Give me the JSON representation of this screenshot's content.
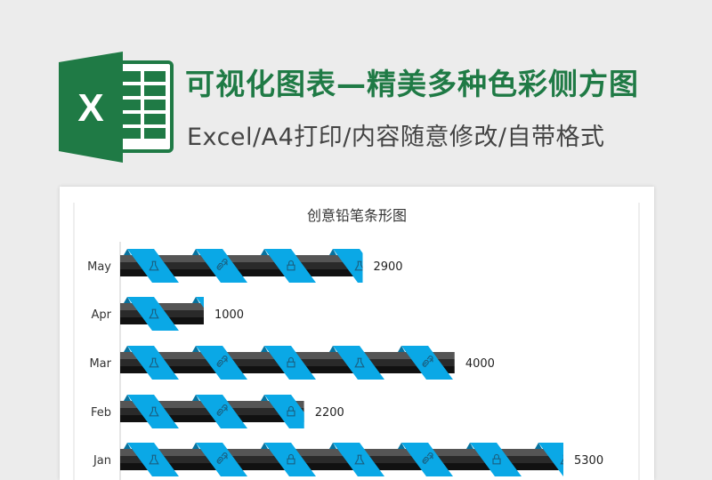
{
  "header": {
    "title": "可视化图表—精美多种色彩侧方图",
    "subtitle": "Excel/A4打印/内容随意修改/自带格式",
    "logo_letter": "X"
  },
  "colors": {
    "brand_green": "#1f7a45",
    "ribbon_blue": "#0aa8e6",
    "bar_dark": "#222222"
  },
  "chart_data": {
    "type": "bar",
    "orientation": "horizontal",
    "title": "创意铅笔条形图",
    "categories": [
      "May",
      "Apr",
      "Mar",
      "Feb",
      "Jan"
    ],
    "values": [
      2900,
      1000,
      4000,
      2200,
      5300
    ],
    "data_labels": [
      "2900",
      "1000",
      "4000",
      "2200",
      "5300"
    ],
    "xlim": [
      0,
      5300
    ],
    "grid": false,
    "legend": "none",
    "ribbon_icons": [
      "flask-icon",
      "link-icon",
      "lock-icon"
    ]
  }
}
